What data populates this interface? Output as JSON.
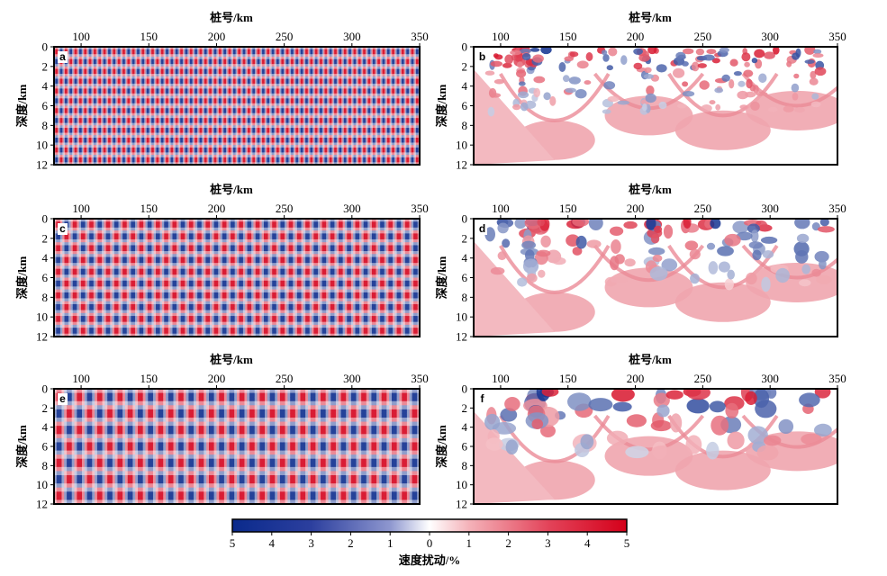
{
  "chart_data": {
    "type": "heatmap",
    "panels": [
      {
        "id": "a",
        "letter": "a",
        "kind": "checkerboard",
        "x_cells": 76,
        "z_cells": 12
      },
      {
        "id": "b",
        "letter": "b",
        "kind": "recovered",
        "resolution": "fine"
      },
      {
        "id": "c",
        "letter": "c",
        "kind": "checkerboard",
        "x_cells": 44,
        "z_cells": 10
      },
      {
        "id": "d",
        "letter": "d",
        "kind": "recovered",
        "resolution": "medium"
      },
      {
        "id": "e",
        "letter": "e",
        "kind": "checkerboard",
        "x_cells": 36,
        "z_cells": 7
      },
      {
        "id": "f",
        "letter": "f",
        "kind": "recovered",
        "resolution": "coarse"
      }
    ],
    "xlabel": "桩号/km",
    "ylabel": "深度/km",
    "xticks": [
      "100",
      "150",
      "200",
      "250",
      "300",
      "350"
    ],
    "yticks": [
      "0",
      "2",
      "4",
      "6",
      "8",
      "10",
      "12"
    ],
    "xlim": [
      80,
      350
    ],
    "ylim": [
      0,
      12
    ],
    "colorbar": {
      "label": "速度扰动/%",
      "ticks": [
        "5",
        "4",
        "3",
        "2",
        "1",
        "0",
        "1",
        "2",
        "3",
        "4",
        "5"
      ],
      "range": [
        -5,
        5
      ],
      "colors": {
        "negative": "#0a2a8c",
        "zero": "#ffffff",
        "positive": "#d4001a"
      }
    }
  }
}
